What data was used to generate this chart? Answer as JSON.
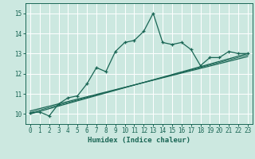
{
  "xlabel": "Humidex (Indice chaleur)",
  "xlim": [
    -0.5,
    23.5
  ],
  "ylim": [
    9.5,
    15.5
  ],
  "xticks": [
    0,
    1,
    2,
    3,
    4,
    5,
    6,
    7,
    8,
    9,
    10,
    11,
    12,
    13,
    14,
    15,
    16,
    17,
    18,
    19,
    20,
    21,
    22,
    23
  ],
  "yticks": [
    10,
    11,
    12,
    13,
    14,
    15
  ],
  "bg_color": "#cce8e0",
  "line_color": "#1a6655",
  "main_x": [
    0,
    1,
    2,
    3,
    4,
    5,
    6,
    7,
    8,
    9,
    10,
    11,
    12,
    13,
    14,
    15,
    16,
    17,
    18,
    19,
    20,
    21,
    22,
    23
  ],
  "main_y": [
    10.05,
    10.1,
    9.9,
    10.5,
    10.8,
    10.9,
    11.5,
    12.3,
    12.1,
    13.1,
    13.55,
    13.65,
    14.1,
    15.0,
    13.55,
    13.45,
    13.55,
    13.2,
    12.4,
    12.8,
    12.8,
    13.1,
    13.0,
    13.0
  ],
  "line2_x": [
    0,
    23
  ],
  "line2_y": [
    10.0,
    13.0
  ],
  "line3_x": [
    0,
    23
  ],
  "line3_y": [
    10.15,
    12.85
  ],
  "line4_x": [
    0,
    23
  ],
  "line4_y": [
    10.07,
    12.93
  ]
}
